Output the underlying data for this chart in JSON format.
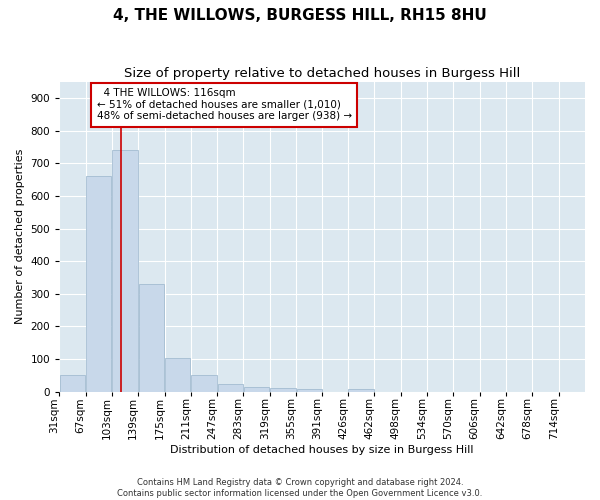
{
  "title": "4, THE WILLOWS, BURGESS HILL, RH15 8HU",
  "subtitle": "Size of property relative to detached houses in Burgess Hill",
  "xlabel": "Distribution of detached houses by size in Burgess Hill",
  "ylabel": "Number of detached properties",
  "footer_line1": "Contains HM Land Registry data © Crown copyright and database right 2024.",
  "footer_line2": "Contains public sector information licensed under the Open Government Licence v3.0.",
  "bar_edges": [
    31,
    67,
    103,
    139,
    175,
    211,
    247,
    283,
    319,
    355,
    391,
    426,
    462,
    498,
    534,
    570,
    606,
    642,
    678,
    714,
    750
  ],
  "bar_heights": [
    52,
    660,
    740,
    330,
    104,
    52,
    25,
    14,
    12,
    8,
    0,
    8,
    0,
    0,
    0,
    0,
    0,
    0,
    0,
    0
  ],
  "bar_color": "#c8d8ea",
  "bar_edgecolor": "#9ab5cc",
  "property_size": 116,
  "vline_color": "#cc0000",
  "annotation_text": "  4 THE WILLOWS: 116sqm\n← 51% of detached houses are smaller (1,010)\n48% of semi-detached houses are larger (938) →",
  "annotation_box_facecolor": "#ffffff",
  "annotation_box_edgecolor": "#cc0000",
  "ylim": [
    0,
    950
  ],
  "yticks": [
    0,
    100,
    200,
    300,
    400,
    500,
    600,
    700,
    800,
    900
  ],
  "plot_bg_color": "#dce8f0",
  "grid_color": "#ffffff",
  "title_fontsize": 11,
  "subtitle_fontsize": 9.5,
  "axis_label_fontsize": 8,
  "tick_fontsize": 7.5,
  "footer_fontsize": 6,
  "annotation_fontsize": 7.5
}
